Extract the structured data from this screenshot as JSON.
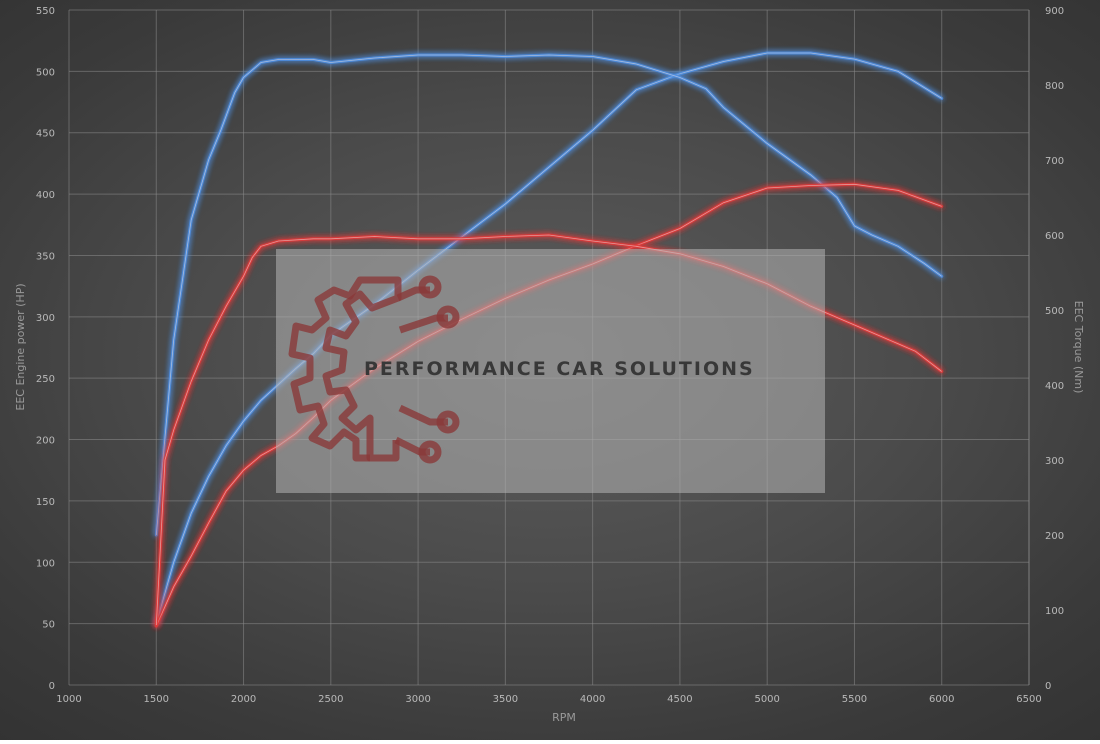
{
  "chart_data": {
    "type": "line",
    "xlabel": "RPM",
    "ylabel_left": "EEC Engine power (HP)",
    "ylabel_right": "EEC Torque (Nm)",
    "xlim": [
      1000,
      6500
    ],
    "ylim_left": [
      0,
      550
    ],
    "ylim_right": [
      0,
      900
    ],
    "x_ticks": [
      1000,
      1500,
      2000,
      2500,
      3000,
      3500,
      4000,
      4500,
      5000,
      5500,
      6000,
      6500
    ],
    "y_ticks_left": [
      0,
      50,
      100,
      150,
      200,
      250,
      300,
      350,
      400,
      450,
      500,
      550
    ],
    "y_ticks_right": [
      0,
      100,
      200,
      300,
      400,
      500,
      600,
      700,
      800,
      900
    ],
    "grid": true,
    "series": [
      {
        "axis": "left",
        "color": "#4f8ee0",
        "x": [
          1500,
          1600,
          1700,
          1800,
          1900,
          2000,
          2100,
          2200,
          2300,
          2400,
          2500,
          2750,
          3000,
          3250,
          3500,
          3750,
          4000,
          4250,
          4500,
          4750,
          5000,
          5250,
          5500,
          5750,
          6000
        ],
        "y": [
          50,
          100,
          140,
          170,
          195,
          215,
          232,
          245,
          258,
          270,
          285,
          310,
          338,
          365,
          392,
          422,
          452,
          485,
          498,
          508,
          515,
          515,
          510,
          500,
          478
        ]
      },
      {
        "axis": "right",
        "color": "#4f8ee0",
        "x": [
          1500,
          1550,
          1600,
          1700,
          1800,
          1870,
          1950,
          2000,
          2100,
          2200,
          2400,
          2500,
          2750,
          3000,
          3250,
          3500,
          3750,
          4000,
          4250,
          4500,
          4650,
          4750,
          5000,
          5250,
          5400,
          5500,
          5600,
          5750,
          5900,
          6000
        ],
        "y": [
          200,
          330,
          460,
          620,
          700,
          740,
          790,
          810,
          830,
          834,
          834,
          830,
          836,
          840,
          840,
          838,
          840,
          838,
          828,
          810,
          795,
          770,
          722,
          680,
          650,
          612,
          600,
          585,
          562,
          545
        ]
      },
      {
        "axis": "left",
        "color": "#e03a3a",
        "x": [
          1500,
          1600,
          1700,
          1800,
          1900,
          2000,
          2100,
          2200,
          2300,
          2400,
          2500,
          2750,
          3000,
          3250,
          3500,
          3750,
          4000,
          4250,
          4500,
          4750,
          5000,
          5250,
          5500,
          5750,
          6000
        ],
        "y": [
          48,
          80,
          105,
          132,
          158,
          175,
          187,
          195,
          205,
          218,
          232,
          258,
          280,
          298,
          315,
          330,
          343,
          358,
          372,
          393,
          405,
          407,
          408,
          403,
          390
        ]
      },
      {
        "axis": "right",
        "color": "#e03a3a",
        "x": [
          1500,
          1550,
          1600,
          1700,
          1800,
          1900,
          2000,
          2050,
          2100,
          2200,
          2400,
          2500,
          2750,
          3000,
          3250,
          3500,
          3750,
          4000,
          4250,
          4500,
          4750,
          5000,
          5250,
          5500,
          5750,
          5850,
          6000
        ],
        "y": [
          80,
          300,
          340,
          405,
          460,
          505,
          545,
          570,
          585,
          592,
          595,
          595,
          598,
          595,
          595,
          598,
          600,
          592,
          585,
          575,
          558,
          535,
          505,
          480,
          455,
          445,
          418
        ]
      }
    ]
  },
  "watermark": {
    "text": "PERFORMANCE CAR SOLUTIONS",
    "icon": "gear-circuit-icon",
    "icon_color": "#8a3a3a"
  }
}
